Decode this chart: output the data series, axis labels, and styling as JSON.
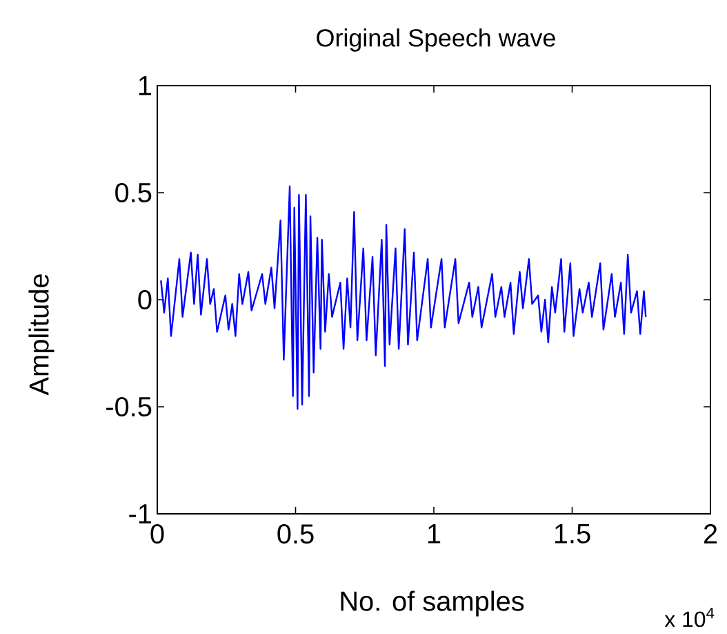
{
  "chart_data": {
    "type": "line",
    "title": "Original Speech wave",
    "xlabel": "No. of samples",
    "ylabel": "Amplitude",
    "annotations": [
      "x 10$^{4}$"
    ],
    "xlim": [
      0,
      2
    ],
    "ylim": [
      -1,
      1
    ],
    "xticks": [
      0,
      0.5,
      1,
      1.5,
      2
    ],
    "yticks": [
      -1,
      -0.5,
      0,
      0.5,
      1
    ],
    "series": [
      {
        "color": "#0000ff",
        "x": [
          0.0133,
          0.0249,
          0.0382,
          0.0498,
          0.0798,
          0.0914,
          0.1214,
          0.133,
          0.1463,
          0.1579,
          0.1796,
          0.1912,
          0.2045,
          0.2161,
          0.2461,
          0.2577,
          0.271,
          0.2827,
          0.296,
          0.3076,
          0.3292,
          0.3409,
          0.3791,
          0.3908,
          0.4124,
          0.424,
          0.4456,
          0.4573,
          0.4789,
          0.4905,
          0.4955,
          0.5072,
          0.5122,
          0.5238,
          0.5371,
          0.5487,
          0.5537,
          0.5654,
          0.5787,
          0.5903,
          0.5953,
          0.607,
          0.6203,
          0.6319,
          0.6618,
          0.6735,
          0.6868,
          0.6984,
          0.7117,
          0.7234,
          0.745,
          0.7566,
          0.7782,
          0.7899,
          0.8115,
          0.8231,
          0.8281,
          0.8398,
          0.8614,
          0.873,
          0.8947,
          0.9063,
          0.9279,
          0.9396,
          0.9778,
          0.9894,
          1.0277,
          1.0393,
          1.0776,
          1.0892,
          1.1275,
          1.1391,
          1.1607,
          1.1724,
          1.2106,
          1.2223,
          1.2439,
          1.2555,
          1.2771,
          1.2888,
          1.3104,
          1.322,
          1.3437,
          1.3553,
          1.3769,
          1.3886,
          1.4019,
          1.4135,
          1.4268,
          1.4385,
          1.4601,
          1.4717,
          1.4933,
          1.505,
          1.5266,
          1.5382,
          1.5599,
          1.5715,
          1.6015,
          1.6131,
          1.643,
          1.6546,
          1.6763,
          1.6879,
          1.7012,
          1.7129,
          1.7345,
          1.7461,
          1.7594,
          1.7661
        ],
        "values": [
          0.09,
          -0.06,
          0.1,
          -0.17,
          0.19,
          -0.08,
          0.22,
          -0.02,
          0.21,
          -0.07,
          0.19,
          -0.02,
          0.05,
          -0.15,
          0.02,
          -0.14,
          -0.02,
          -0.17,
          0.12,
          -0.02,
          0.13,
          -0.05,
          0.12,
          -0.02,
          0.15,
          -0.04,
          0.37,
          -0.28,
          0.53,
          -0.45,
          0.43,
          -0.51,
          0.49,
          -0.49,
          0.49,
          -0.45,
          0.39,
          -0.34,
          0.29,
          -0.23,
          0.28,
          -0.15,
          0.12,
          -0.08,
          0.08,
          -0.23,
          0.1,
          -0.13,
          0.41,
          -0.19,
          0.24,
          -0.19,
          0.2,
          -0.26,
          0.28,
          -0.31,
          0.35,
          -0.21,
          0.24,
          -0.23,
          0.33,
          -0.21,
          0.22,
          -0.19,
          0.19,
          -0.13,
          0.19,
          -0.13,
          0.19,
          -0.11,
          0.08,
          -0.08,
          0.06,
          -0.13,
          0.12,
          -0.08,
          0.06,
          -0.08,
          0.08,
          -0.16,
          0.13,
          -0.04,
          0.19,
          -0.02,
          0.02,
          -0.15,
          0.0,
          -0.2,
          0.06,
          -0.06,
          0.19,
          -0.15,
          0.17,
          -0.17,
          0.05,
          -0.06,
          0.08,
          -0.08,
          0.17,
          -0.14,
          0.12,
          -0.08,
          0.08,
          -0.16,
          0.21,
          -0.06,
          0.04,
          -0.16,
          0.04,
          -0.08
        ]
      }
    ]
  }
}
